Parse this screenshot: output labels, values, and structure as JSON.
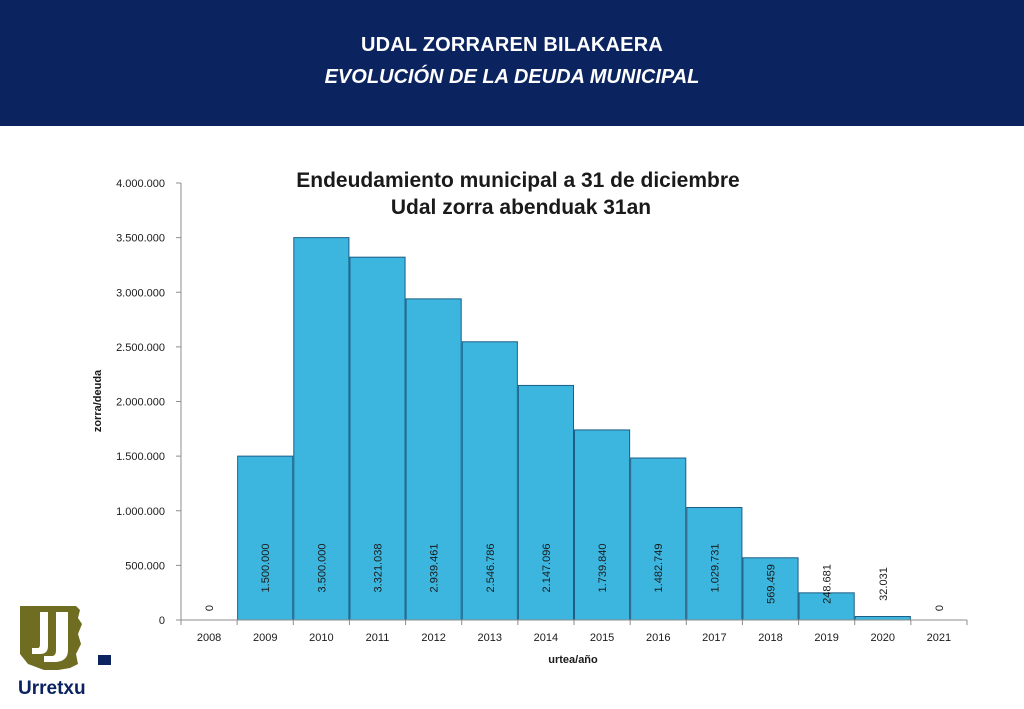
{
  "header": {
    "title_eu": "UDAL ZORRAREN BILAKAERA",
    "title_es": "EVOLUCIÓN DE LA DEUDA MUNICIPAL"
  },
  "logo": {
    "text": "Urretxu"
  },
  "colors": {
    "header_bg": "#0b2460",
    "bar_fill": "#3cb6de",
    "bar_stroke": "#1d5e86",
    "logo_olive": "#6f6d22",
    "logo_text": "#0b2460"
  },
  "chart_data": {
    "type": "bar",
    "title": "Endeudamiento municipal a 31 de diciembre",
    "subtitle": "Udal zorra abenduak 31an",
    "xlabel": "urtea/año",
    "ylabel": "zorra/deuda",
    "categories": [
      "2008",
      "2009",
      "2010",
      "2011",
      "2012",
      "2013",
      "2014",
      "2015",
      "2016",
      "2017",
      "2018",
      "2019",
      "2020",
      "2021"
    ],
    "values": [
      0,
      1500000,
      3500000,
      3321038,
      2939461,
      2546786,
      2147096,
      1739840,
      1482749,
      1029731,
      569459,
      248681,
      32031,
      0
    ],
    "data_labels": [
      "0",
      "1.500.000",
      "3.500.000",
      "3.321.038",
      "2.939.461",
      "2.546.786",
      "2.147.096",
      "1.739.840",
      "1.482.749",
      "1.029.731",
      "569.459",
      "248.681",
      "32.031",
      "0"
    ],
    "ylim": [
      0,
      4000000
    ],
    "yticks": [
      0,
      500000,
      1000000,
      1500000,
      2000000,
      2500000,
      3000000,
      3500000,
      4000000
    ],
    "ytick_labels": [
      "0",
      "500.000",
      "1.000.000",
      "1.500.000",
      "2.000.000",
      "2.500.000",
      "3.000.000",
      "3.500.000",
      "4.000.000"
    ],
    "grid": false,
    "legend": "none"
  }
}
